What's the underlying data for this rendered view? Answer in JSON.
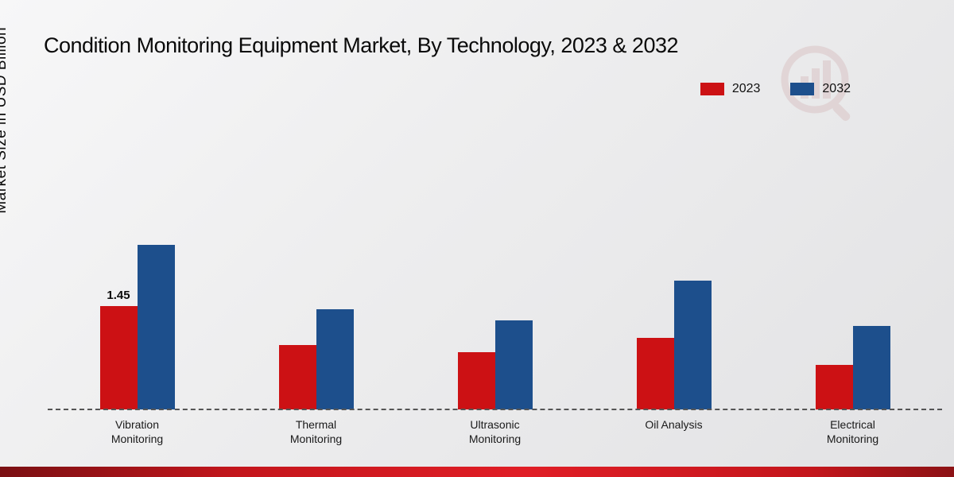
{
  "chart_data": {
    "type": "bar",
    "title": "Condition Monitoring Equipment Market, By Technology, 2023 & 2032",
    "ylabel": "Market Size in USD Billion",
    "categories": [
      "Vibration Monitoring",
      "Thermal Monitoring",
      "Ultrasonic Monitoring",
      "Oil Analysis",
      "Electrical Monitoring"
    ],
    "series": [
      {
        "name": "2023",
        "color": "#cc1114",
        "values": [
          1.45,
          0.9,
          0.8,
          1.0,
          0.62
        ],
        "labels": [
          "1.45",
          "",
          "",
          "",
          ""
        ]
      },
      {
        "name": "2032",
        "color": "#1d4f8c",
        "values": [
          2.3,
          1.4,
          1.25,
          1.8,
          1.17
        ],
        "labels": [
          "",
          "",
          "",
          "",
          ""
        ]
      }
    ],
    "ylim": [
      0,
      2.5
    ],
    "legend_position": "top-right",
    "grid": false,
    "baseline_style": "dashed"
  },
  "legend": [
    {
      "label": "2023",
      "color": "#cc1114"
    },
    {
      "label": "2032",
      "color": "#1d4f8c"
    }
  ]
}
